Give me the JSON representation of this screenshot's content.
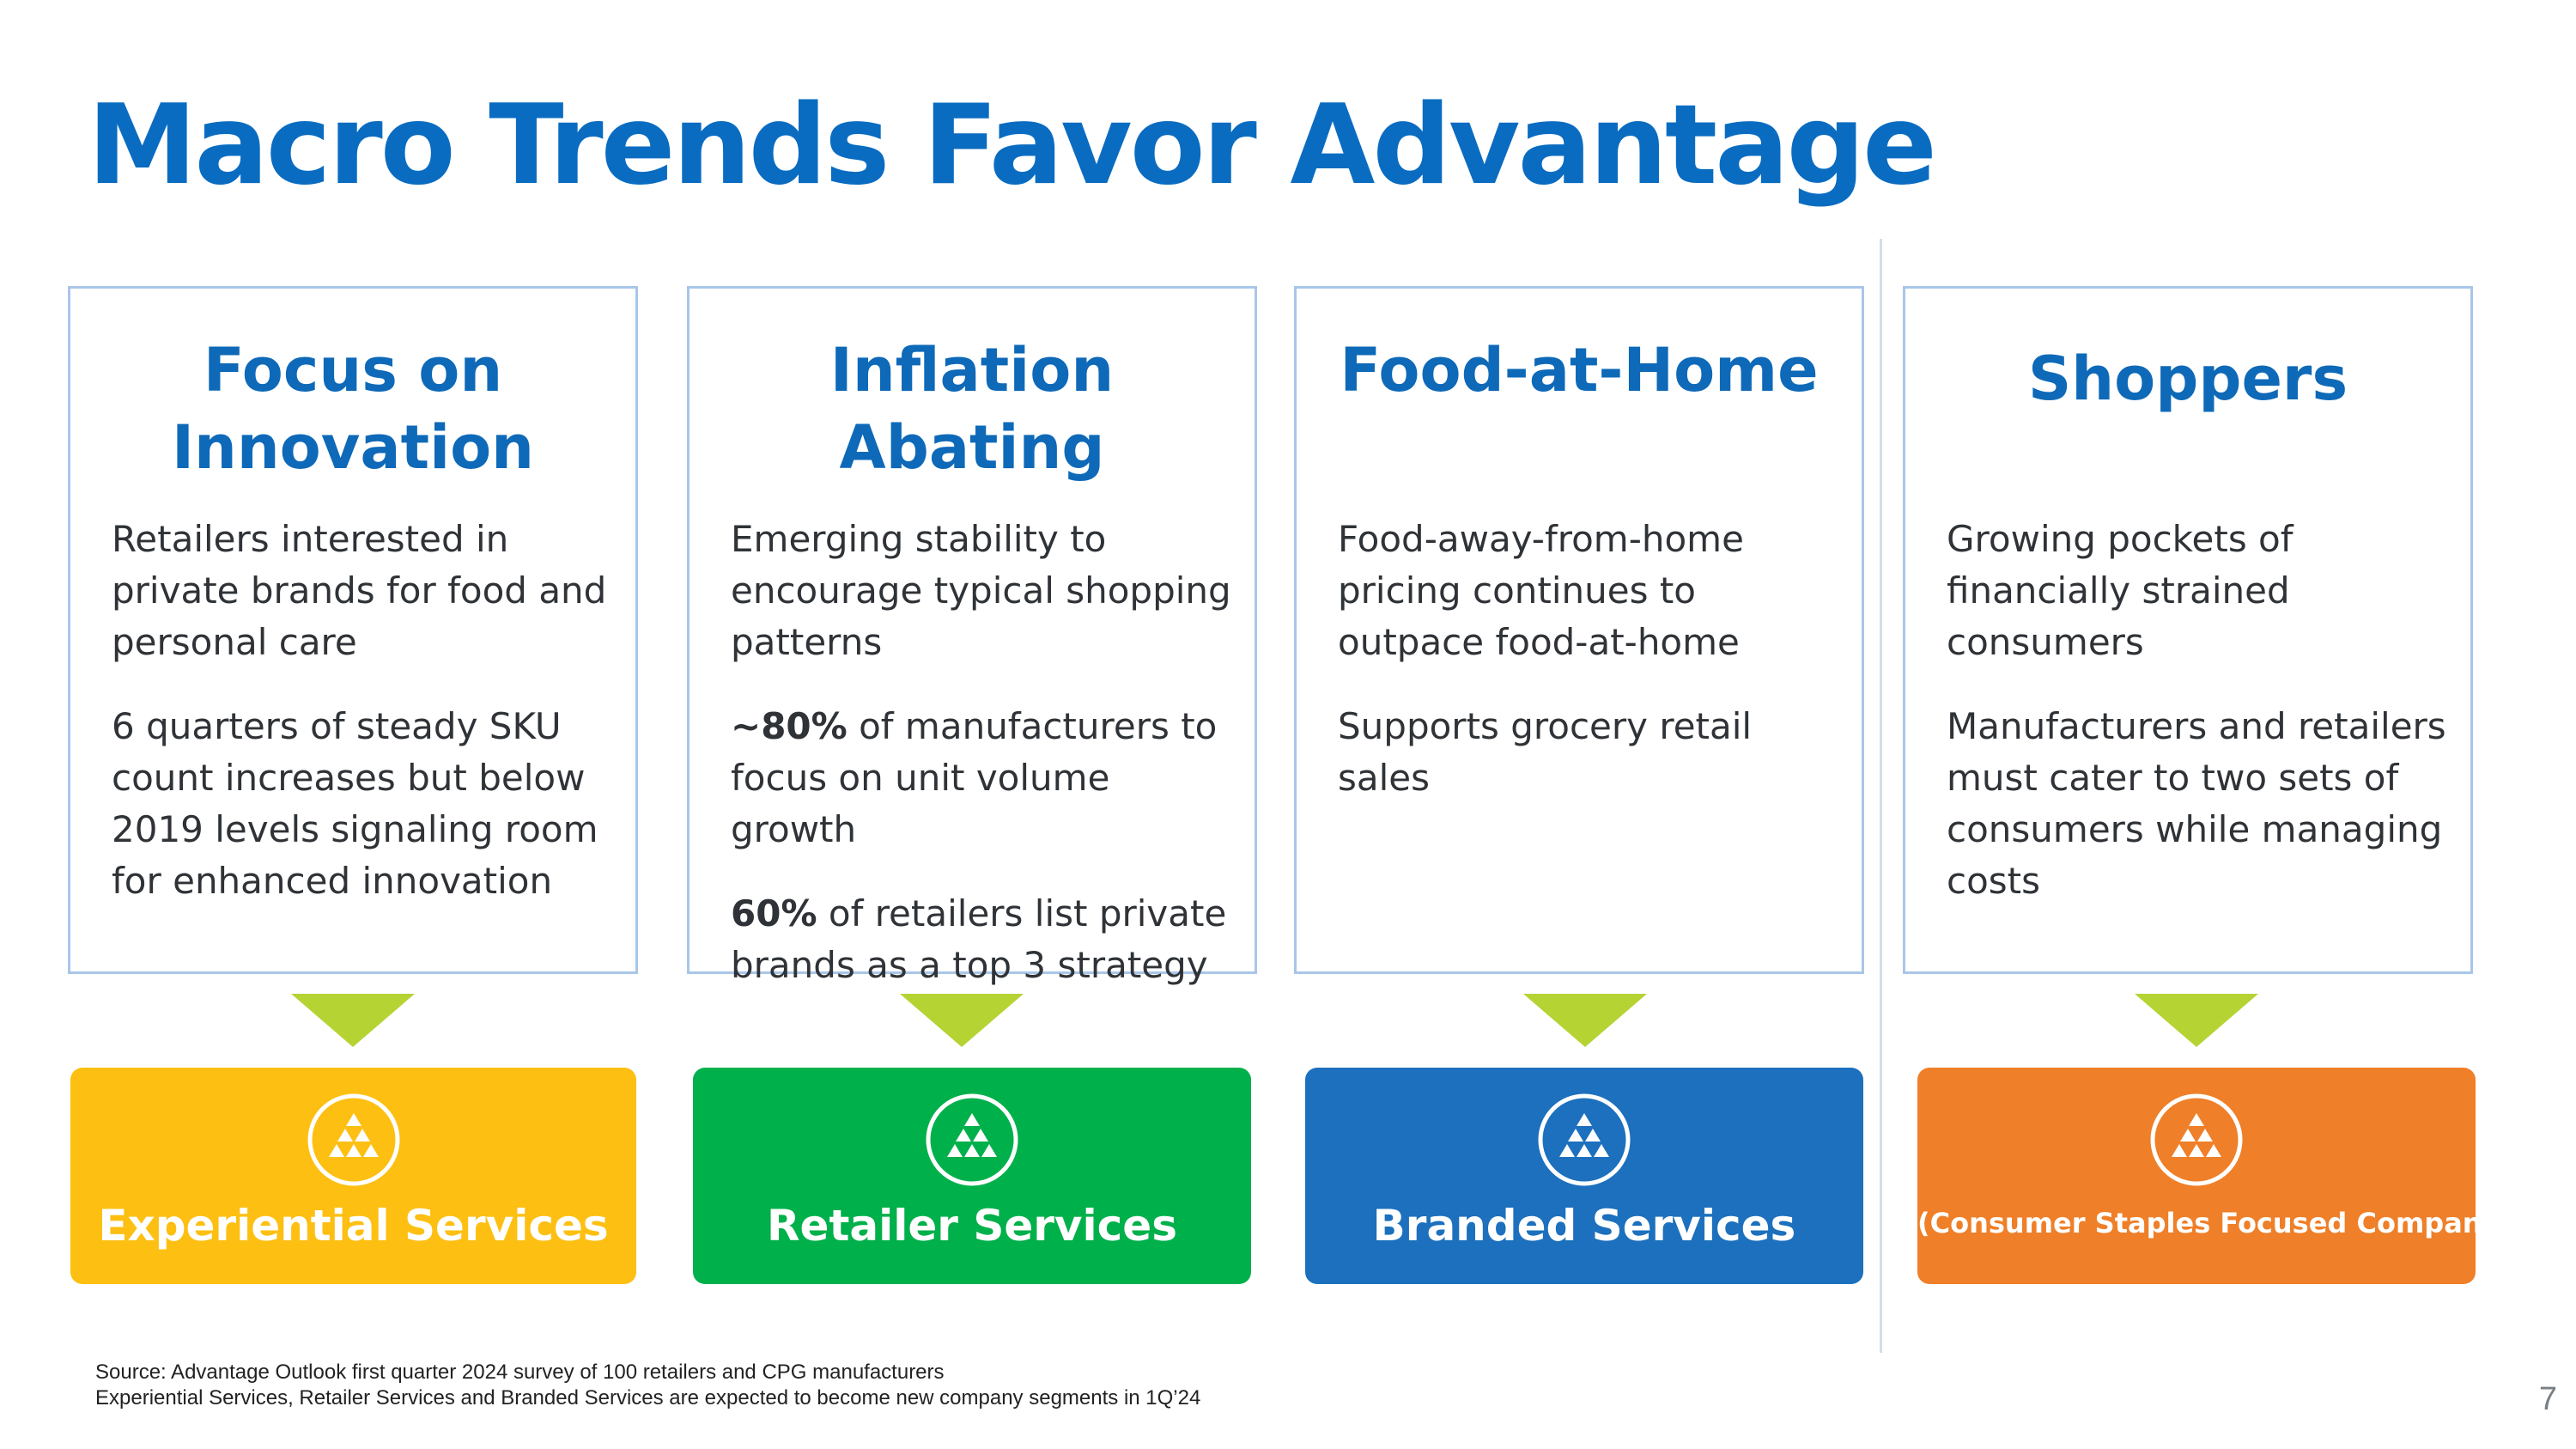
{
  "slide": {
    "title": "Macro Trends Favor Advantage",
    "page_number": "7"
  },
  "cards": [
    {
      "heading_lines": [
        "Focus on",
        "Innovation"
      ],
      "paragraphs": [
        {
          "bold": "",
          "text": "Retailers interested in private brands for food and personal care"
        },
        {
          "bold": "",
          "text": "6 quarters of steady SKU count increases but below 2019 levels signaling room for enhanced innovation"
        }
      ]
    },
    {
      "heading_lines": [
        "Inflation",
        "Abating"
      ],
      "paragraphs": [
        {
          "bold": "",
          "text": "Emerging stability to encourage typical shopping patterns"
        },
        {
          "bold": "~80%",
          "text": " of manufacturers to focus on unit volume growth"
        },
        {
          "bold": "60%",
          "text": " of retailers list private brands as a top 3 strategy"
        }
      ]
    },
    {
      "heading_lines": [
        "Food-at-Home"
      ],
      "paragraphs": [
        {
          "bold": "",
          "text": "Food-away-from-home pricing continues to outpace food-at-home"
        },
        {
          "bold": "",
          "text": "Supports grocery retail sales"
        }
      ]
    },
    {
      "heading_lines": [
        "Shoppers"
      ],
      "paragraphs": [
        {
          "bold": "",
          "text": "Growing pockets of financially strained consumers"
        },
        {
          "bold": "",
          "text": "Manufacturers and retailers must cater to two sets of consumers while managing costs"
        }
      ]
    }
  ],
  "segments": [
    {
      "label": "Experiential Services",
      "color": "#fdbf12",
      "logo_icon": "advantage-logo-icon"
    },
    {
      "label": "Retailer Services",
      "color": "#00b04a",
      "logo_icon": "advantage-logo-icon"
    },
    {
      "label": "Branded Services",
      "color": "#1c70bd",
      "logo_icon": "advantage-logo-icon"
    },
    {
      "label": "(Consumer Staples Focused Company)",
      "color": "#ef7f28",
      "logo_icon": "advantage-logo-icon"
    }
  ],
  "colors": {
    "title": "#0a6cc1",
    "heading": "#0e69b8",
    "card_border": "#a9c6e8",
    "arrow": "#b6d334"
  },
  "footnotes": [
    "Source: Advantage Outlook first quarter 2024 survey of 100 retailers and CPG manufacturers",
    "Experiential Services, Retailer Services and Branded Services are expected to become new company segments in 1Q’24"
  ]
}
